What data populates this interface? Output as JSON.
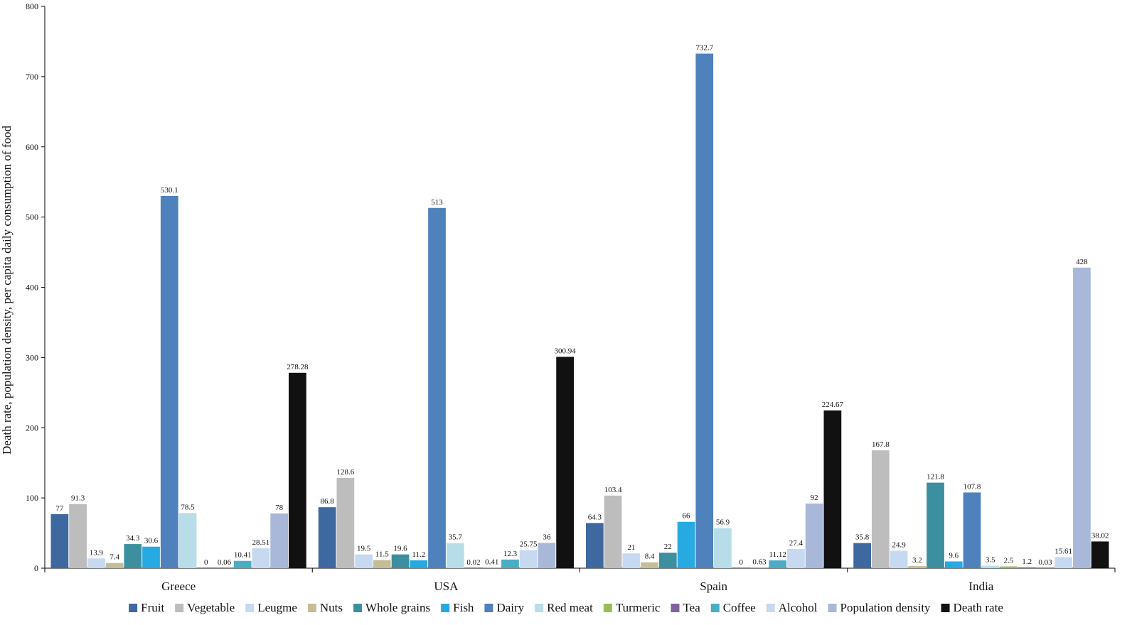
{
  "chart_data": {
    "type": "bar",
    "title": "",
    "xlabel": "",
    "ylabel": "Death rate, population density, per capita daily consumption of food",
    "ylim": [
      0,
      800
    ],
    "yticks": [
      0,
      100,
      200,
      300,
      400,
      500,
      600,
      700,
      800
    ],
    "categories": [
      "Greece",
      "USA",
      "Spain",
      "India"
    ],
    "legend_position": "bottom",
    "series": [
      {
        "name": "Fruit",
        "color": "#3e68a0",
        "values": [
          77,
          86.8,
          64.3,
          35.8
        ],
        "labels": [
          "77",
          "86.8",
          "64.3",
          "35.8"
        ]
      },
      {
        "name": "Vegetable",
        "color": "#bdbdbd",
        "values": [
          91.3,
          128.6,
          103.4,
          167.8
        ],
        "labels": [
          "91.3",
          "128.6",
          "103.4",
          "167.8"
        ]
      },
      {
        "name": "Leugme",
        "color": "#c6d9f1",
        "values": [
          13.9,
          19.5,
          21,
          24.9
        ],
        "labels": [
          "13.9",
          "19.5",
          "21",
          "24.9"
        ]
      },
      {
        "name": "Nuts",
        "color": "#c4bd97",
        "values": [
          7.4,
          11.5,
          8.4,
          3.2
        ],
        "labels": [
          "7.4",
          "11.5",
          "8.4",
          "3.2"
        ]
      },
      {
        "name": "Whole grains",
        "color": "#3b8f9e",
        "values": [
          34.3,
          19.6,
          22,
          121.8
        ],
        "labels": [
          "34.3",
          "19.6",
          "22",
          "121.8"
        ]
      },
      {
        "name": "Fish",
        "color": "#27a9e1",
        "values": [
          30.6,
          11.2,
          66,
          9.6
        ],
        "labels": [
          "30.6",
          "11.2",
          "66",
          "9.6"
        ]
      },
      {
        "name": "Dairy",
        "color": "#4f81bd",
        "values": [
          530.1,
          513,
          732.7,
          107.8
        ],
        "labels": [
          "530.1",
          "513",
          "732.7",
          "107.8"
        ]
      },
      {
        "name": "Red meat",
        "color": "#b7dde8",
        "values": [
          78.5,
          35.7,
          56.9,
          3.5
        ],
        "labels": [
          "78.5",
          "35.7",
          "56.9",
          "3.5"
        ]
      },
      {
        "name": "Turmeric",
        "color": "#9bbb59",
        "values": [
          0,
          0.02,
          0,
          2.5
        ],
        "labels": [
          "0",
          "0.02",
          "0",
          "2.5"
        ]
      },
      {
        "name": "Tea",
        "color": "#8064a2",
        "values": [
          0.06,
          0.41,
          0.63,
          1.2
        ],
        "labels": [
          "0.06",
          "0.41",
          "0.63",
          "1.2"
        ]
      },
      {
        "name": "Coffee",
        "color": "#4bacc6",
        "values": [
          10.41,
          12.3,
          11.12,
          0.03
        ],
        "labels": [
          "10.41",
          "12.3",
          "11.12",
          "0.03"
        ]
      },
      {
        "name": "Alcohol",
        "color": "#c6d9f1",
        "values": [
          28.51,
          25.75,
          27.4,
          15.61
        ],
        "labels": [
          "28.51",
          "25.75",
          "27.4",
          "15.61"
        ]
      },
      {
        "name": "Population density",
        "color": "#a9b8d9",
        "values": [
          78,
          36,
          92,
          428
        ],
        "labels": [
          "78",
          "36",
          "92",
          "428"
        ]
      },
      {
        "name": "Death rate",
        "color": "#111111",
        "values": [
          278.28,
          300.94,
          224.67,
          38.02
        ],
        "labels": [
          "278.28",
          "300.94",
          "224.67",
          "38.02"
        ]
      }
    ]
  }
}
